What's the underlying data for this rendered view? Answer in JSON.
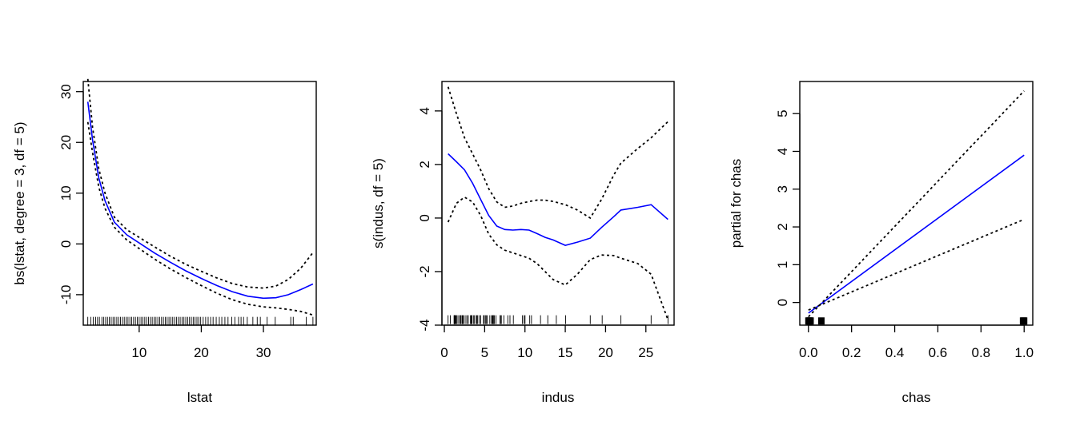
{
  "colors": {
    "fit": "#0000ff",
    "band": "#000000",
    "frame": "#000000",
    "rug": "#000000"
  },
  "chart_data": [
    {
      "type": "line",
      "xlabel": "lstat",
      "ylabel": "bs(lstat, degree = 3, df = 5)",
      "xlim": [
        1.0,
        38.5
      ],
      "ylim": [
        -16,
        32
      ],
      "xticks": [
        10,
        20,
        30
      ],
      "yticks": [
        -10,
        0,
        10,
        20,
        30
      ],
      "series": [
        {
          "role": "fit",
          "style": "solid",
          "color": "#0000ff",
          "x": [
            1.73,
            2.5,
            3.5,
            4.5,
            6,
            8,
            10,
            12.5,
            15,
            17.5,
            20,
            22.5,
            25,
            27.5,
            30,
            32,
            34,
            36,
            37.97
          ],
          "y": [
            28.0,
            20.5,
            13.0,
            8.5,
            4.3,
            1.8,
            0.2,
            -1.8,
            -3.6,
            -5.3,
            -6.8,
            -8.2,
            -9.4,
            -10.3,
            -10.7,
            -10.6,
            -10.0,
            -9.0,
            -7.9
          ]
        },
        {
          "role": "upper",
          "style": "dotted",
          "color": "#000000",
          "x": [
            1.73,
            2.5,
            3.5,
            4.5,
            6,
            8,
            10,
            12.5,
            15,
            17.5,
            20,
            22.5,
            25,
            27.5,
            30,
            32,
            34,
            36,
            37.97
          ],
          "y": [
            32.5,
            23.0,
            14.8,
            10.0,
            5.3,
            2.8,
            1.3,
            -0.6,
            -2.4,
            -4.0,
            -5.4,
            -6.7,
            -7.8,
            -8.5,
            -8.7,
            -8.3,
            -7.0,
            -4.8,
            -1.7
          ]
        },
        {
          "role": "lower",
          "style": "dotted",
          "color": "#000000",
          "x": [
            1.73,
            2.5,
            3.5,
            4.5,
            6,
            8,
            10,
            12.5,
            15,
            17.5,
            20,
            22.5,
            25,
            27.5,
            30,
            32,
            34,
            36,
            37.97
          ],
          "y": [
            24.0,
            18.0,
            11.2,
            7.0,
            3.3,
            0.8,
            -0.9,
            -3.0,
            -4.9,
            -6.6,
            -8.2,
            -9.7,
            -11.0,
            -11.9,
            -12.4,
            -12.6,
            -12.9,
            -13.3,
            -14.0
          ]
        }
      ],
      "rug": [
        1.73,
        2.2,
        2.6,
        3.0,
        3.3,
        3.6,
        4.0,
        4.3,
        4.6,
        4.9,
        5.2,
        5.5,
        5.8,
        6.1,
        6.4,
        6.7,
        7.0,
        7.3,
        7.6,
        7.9,
        8.2,
        8.5,
        8.8,
        9.1,
        9.4,
        9.7,
        10.0,
        10.3,
        10.6,
        10.9,
        11.2,
        11.5,
        11.8,
        12.1,
        12.4,
        12.7,
        13.0,
        13.3,
        13.6,
        13.9,
        14.2,
        14.5,
        14.8,
        15.1,
        15.4,
        15.7,
        16.0,
        16.3,
        16.6,
        16.9,
        17.2,
        17.5,
        17.8,
        18.1,
        18.4,
        18.7,
        19.0,
        19.3,
        19.6,
        19.9,
        20.3,
        20.7,
        21.1,
        21.5,
        21.9,
        22.4,
        22.9,
        23.3,
        23.8,
        24.3,
        24.9,
        25.4,
        26.0,
        26.4,
        26.8,
        27.4,
        28.3,
        29.0,
        29.5,
        30.6,
        31.9,
        34.4,
        34.8,
        36.9,
        37.97
      ],
      "rug_y": -15
    },
    {
      "type": "line",
      "xlabel": "indus",
      "ylabel": "s(indus, df = 5)",
      "xlim": [
        -0.3,
        28.5
      ],
      "ylim": [
        -4,
        5.1
      ],
      "xticks": [
        0,
        5,
        10,
        15,
        20,
        25
      ],
      "yticks": [
        -4,
        -2,
        0,
        2,
        4
      ],
      "series": [
        {
          "role": "fit",
          "style": "solid",
          "color": "#0000ff",
          "x": [
            0.46,
            1.5,
            2.5,
            3.5,
            4.5,
            5.5,
            6.5,
            7.5,
            8.5,
            9.5,
            10.5,
            11.5,
            12.5,
            13.5,
            15.0,
            16.5,
            18.1,
            19.5,
            21.0,
            21.9,
            24.0,
            25.65,
            27.74
          ],
          "y": [
            2.4,
            2.1,
            1.8,
            1.3,
            0.7,
            0.1,
            -0.3,
            -0.43,
            -0.45,
            -0.43,
            -0.45,
            -0.58,
            -0.72,
            -0.82,
            -1.02,
            -0.9,
            -0.75,
            -0.35,
            0.05,
            0.3,
            0.4,
            0.5,
            -0.05
          ]
        },
        {
          "role": "upper",
          "style": "dotted",
          "color": "#000000",
          "x": [
            0.46,
            1.5,
            2.5,
            3.5,
            4.5,
            5.5,
            6.5,
            7.5,
            8.5,
            9.5,
            10.5,
            11.5,
            12.5,
            13.5,
            15.0,
            16.5,
            18.1,
            19.5,
            21.0,
            21.9,
            24.0,
            25.65,
            27.74
          ],
          "y": [
            4.9,
            3.9,
            3.0,
            2.4,
            1.8,
            1.1,
            0.6,
            0.4,
            0.45,
            0.55,
            0.62,
            0.67,
            0.67,
            0.62,
            0.5,
            0.3,
            0.0,
            0.7,
            1.6,
            2.05,
            2.6,
            3.0,
            3.6
          ]
        },
        {
          "role": "lower",
          "style": "dotted",
          "color": "#000000",
          "x": [
            0.46,
            1.5,
            2.5,
            3.5,
            4.5,
            5.5,
            6.5,
            7.5,
            8.5,
            9.5,
            10.5,
            11.5,
            12.5,
            13.5,
            15.0,
            16.5,
            18.1,
            19.5,
            21.0,
            21.9,
            24.0,
            25.65,
            27.74
          ],
          "y": [
            -0.15,
            0.55,
            0.78,
            0.6,
            0.1,
            -0.6,
            -1.0,
            -1.2,
            -1.3,
            -1.4,
            -1.5,
            -1.7,
            -2.0,
            -2.3,
            -2.5,
            -2.1,
            -1.55,
            -1.38,
            -1.4,
            -1.5,
            -1.7,
            -2.1,
            -3.8
          ]
        }
      ],
      "rug": [
        0.46,
        0.74,
        1.21,
        1.22,
        1.25,
        1.32,
        1.38,
        1.47,
        1.52,
        1.69,
        1.89,
        2.01,
        2.02,
        2.18,
        2.24,
        2.31,
        2.46,
        2.68,
        2.89,
        2.95,
        3.24,
        3.33,
        3.41,
        3.44,
        3.64,
        3.75,
        3.97,
        4.05,
        4.15,
        4.39,
        4.49,
        4.86,
        4.93,
        4.95,
        5.13,
        5.19,
        5.32,
        5.64,
        5.86,
        5.96,
        6.06,
        6.07,
        6.09,
        6.2,
        6.41,
        6.91,
        6.96,
        7.07,
        7.38,
        7.87,
        8.14,
        8.56,
        9.69,
        9.9,
        10.01,
        10.59,
        10.81,
        11.93,
        12.83,
        13.89,
        15.04,
        18.1,
        19.58,
        21.89,
        25.65,
        27.74
      ],
      "rug_y": -3.75
    },
    {
      "type": "line",
      "xlabel": "chas",
      "ylabel": "partial for chas",
      "xlim": [
        -0.04,
        1.04
      ],
      "ylim": [
        -0.6,
        5.85
      ],
      "xticks": [
        0.0,
        0.2,
        0.4,
        0.6,
        0.8,
        1.0
      ],
      "xtick_labels": [
        "0.0",
        "0.2",
        "0.4",
        "0.6",
        "0.8",
        "1.0"
      ],
      "yticks": [
        0,
        1,
        2,
        3,
        4,
        5
      ],
      "series": [
        {
          "role": "fit",
          "style": "solid",
          "color": "#0000ff",
          "x": [
            0,
            1
          ],
          "y": [
            -0.28,
            3.9
          ]
        },
        {
          "role": "upper",
          "style": "dotted",
          "color": "#000000",
          "x": [
            0,
            1
          ],
          "y": [
            -0.38,
            5.6
          ]
        },
        {
          "role": "lower",
          "style": "dotted",
          "color": "#000000",
          "x": [
            0,
            1
          ],
          "y": [
            -0.2,
            2.2
          ]
        }
      ],
      "rug": [
        0.0,
        0.005,
        0.01,
        0.06,
        0.995,
        1.0
      ],
      "rug_y": -0.5,
      "rug_style": "block"
    }
  ]
}
